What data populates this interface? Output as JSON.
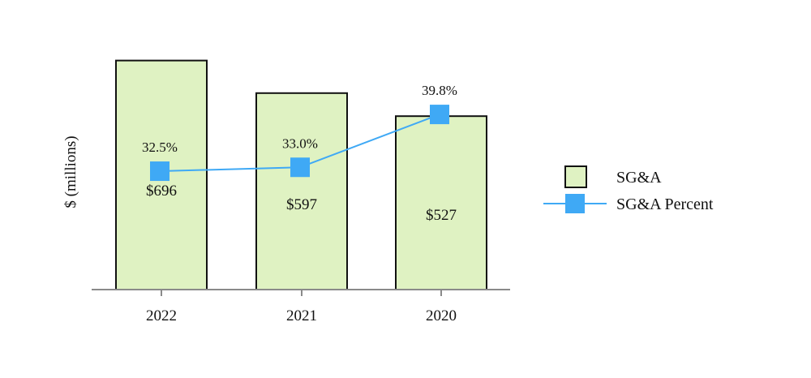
{
  "chart_data": {
    "type": "bar",
    "categories": [
      "2022",
      "2021",
      "2020"
    ],
    "ylabel": "$ (millions)",
    "ylim": [
      0,
      700
    ],
    "legend_position": "right",
    "series": [
      {
        "name": "SG&A",
        "kind": "bar",
        "values": [
          696,
          597,
          527
        ],
        "labels": [
          "$696",
          "$597",
          "$527"
        ],
        "color": "#dff2c2",
        "stroke": "#111111"
      },
      {
        "name": "SG&A Percent",
        "kind": "line",
        "values": [
          32.5,
          33.0,
          39.8
        ],
        "labels": [
          "32.5%",
          "33.0%",
          "39.8%"
        ],
        "color": "#3fa9f5"
      }
    ]
  }
}
